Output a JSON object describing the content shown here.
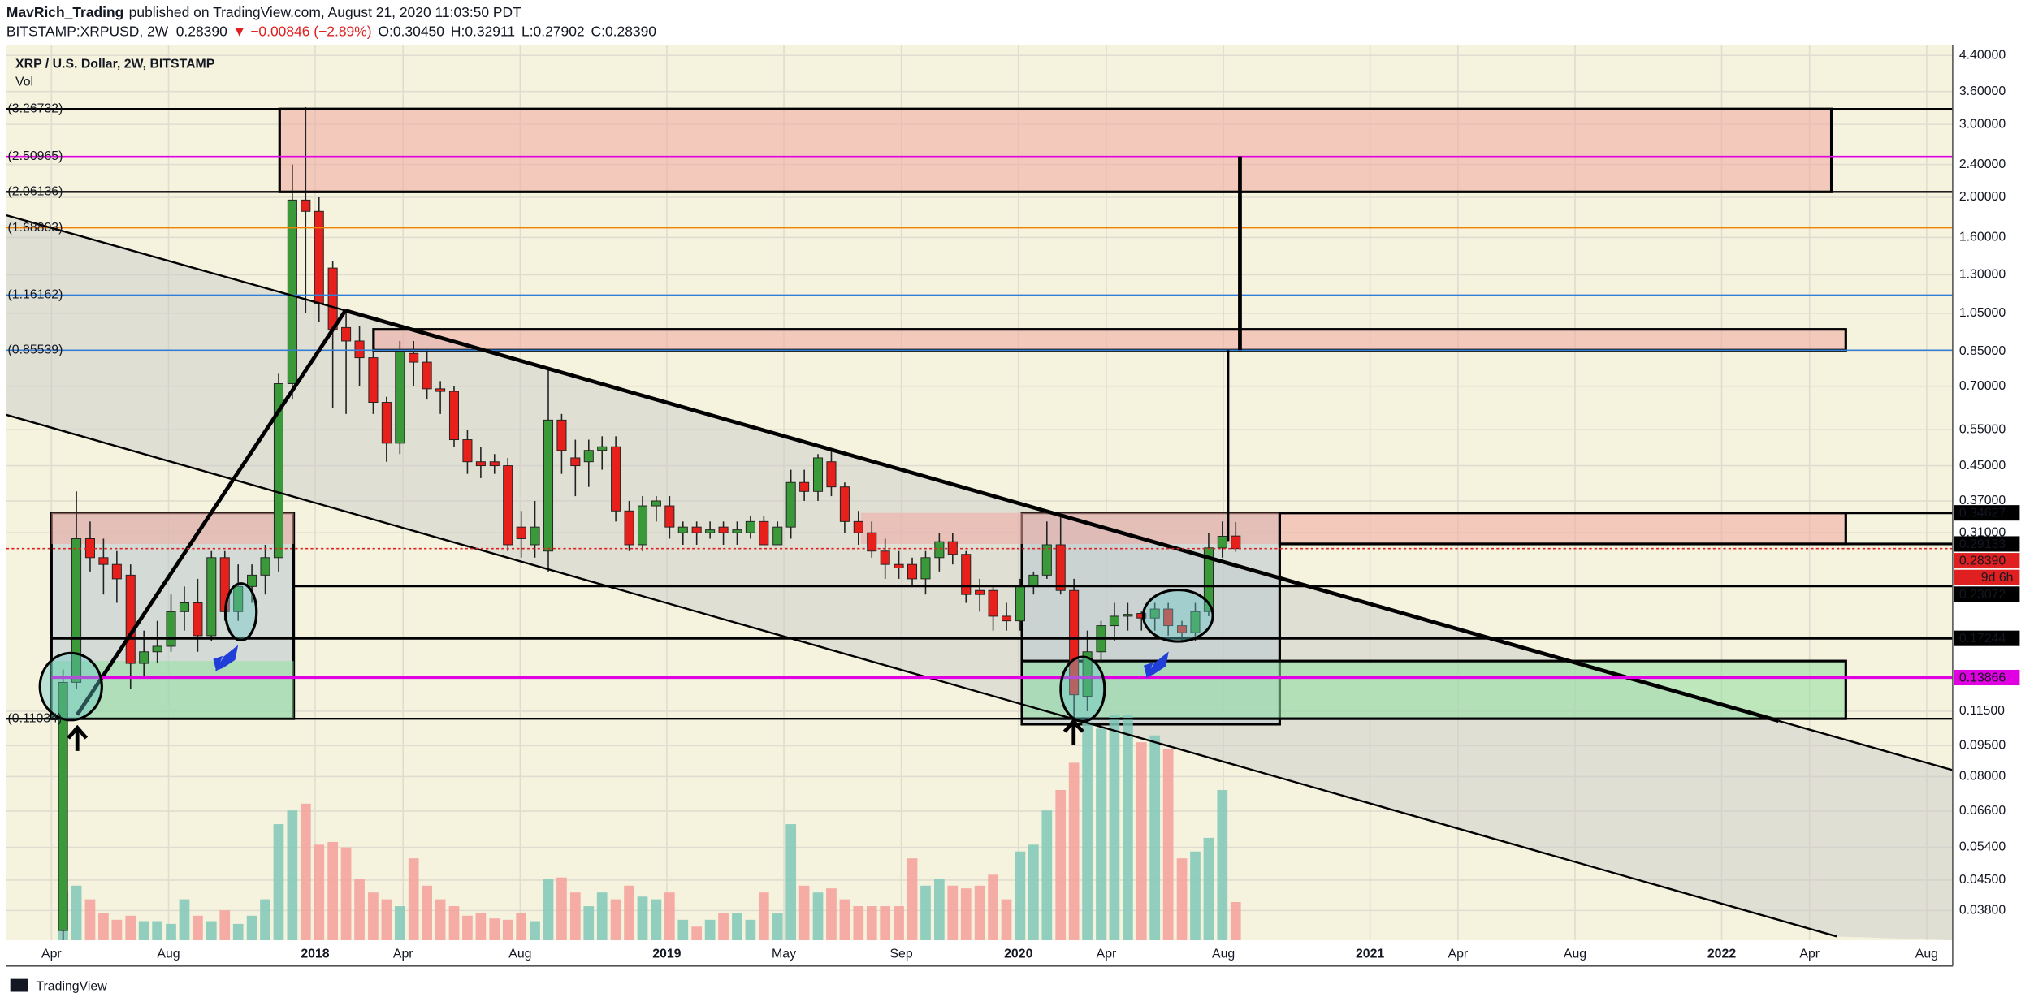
{
  "header": {
    "author": "MavRich_Trading",
    "published": "published on TradingView.com, August 21, 2020 11:03:50 PDT",
    "symbol": "BITSTAMP:XRPUSD, 2W",
    "last": "0.28390",
    "change": "▼ −0.00846 (−2.89%)",
    "open": "O:0.30450",
    "high": "H:0.32911",
    "low": "L:0.27902",
    "close": "C:0.28390"
  },
  "footer": "TradingView",
  "chart_data": {
    "type": "candlestick",
    "title": "XRP / U.S. Dollar, 2W, BITSTAMP",
    "volume_label": "Vol",
    "log_scale": true,
    "grid": true,
    "xlim": [
      2017.122,
      2022.657
    ],
    "ylim": [
      0.0322,
      4.66
    ],
    "xticks": [
      {
        "value": 2017.25,
        "label": "Apr"
      },
      {
        "value": 2017.583,
        "label": "Aug"
      },
      2018,
      {
        "value": 2018.25,
        "label": "Apr"
      },
      {
        "value": 2018.583,
        "label": "Aug"
      },
      2019,
      {
        "value": 2019.333,
        "label": "May"
      },
      {
        "value": 2019.667,
        "label": "Sep"
      },
      2020,
      {
        "value": 2020.25,
        "label": "Apr"
      },
      {
        "value": 2020.583,
        "label": "Aug"
      },
      2021,
      {
        "value": 2021.25,
        "label": "Apr"
      },
      {
        "value": 2021.583,
        "label": "Aug"
      },
      2022,
      {
        "value": 2022.25,
        "label": "Apr"
      },
      {
        "value": 2022.583,
        "label": "Aug"
      }
    ],
    "yticks": [
      {
        "value": 4.4,
        "label": "4.40000"
      },
      {
        "value": 3.6,
        "label": "3.60000"
      },
      {
        "value": 3,
        "label": "3.00000"
      },
      {
        "value": 2.4,
        "label": "2.40000"
      },
      {
        "value": 2,
        "label": "2.00000"
      },
      {
        "value": 1.6,
        "label": "1.60000"
      },
      {
        "value": 1.3,
        "label": "1.30000"
      },
      {
        "value": 1.05,
        "label": "1.05000"
      },
      {
        "value": 0.85,
        "label": "0.85000"
      },
      {
        "value": 0.7,
        "label": "0.70000"
      },
      {
        "value": 0.55,
        "label": "0.55000"
      },
      {
        "value": 0.45,
        "label": "0.45000"
      },
      {
        "value": 0.37,
        "label": "0.37000"
      },
      {
        "value": 0.31,
        "label": "0.31000"
      },
      {
        "value": 0.115,
        "label": "0.11500"
      },
      {
        "value": 0.095,
        "label": "0.09500"
      },
      {
        "value": 0.08,
        "label": "0.08000"
      },
      {
        "value": 0.066,
        "label": "0.06600"
      },
      {
        "value": 0.054,
        "label": "0.05400"
      },
      {
        "value": 0.045,
        "label": "0.04500"
      },
      {
        "value": 0.038,
        "label": "0.03800"
      }
    ],
    "up_color": "#3a9a3a",
    "down_color": "#e8201c",
    "volume_up_color": "#7fc8b8",
    "volume_down_color": "#f4a09a",
    "x": [
      2017.283,
      2017.321,
      2017.36,
      2017.398,
      2017.436,
      2017.475,
      2017.513,
      2017.551,
      2017.59,
      2017.628,
      2017.666,
      2017.705,
      2017.743,
      2017.781,
      2017.82,
      2017.858,
      2017.896,
      2017.935,
      2017.973,
      2018.011,
      2018.05,
      2018.088,
      2018.126,
      2018.165,
      2018.203,
      2018.241,
      2018.28,
      2018.318,
      2018.356,
      2018.395,
      2018.433,
      2018.471,
      2018.51,
      2018.548,
      2018.586,
      2018.625,
      2018.663,
      2018.701,
      2018.74,
      2018.778,
      2018.816,
      2018.855,
      2018.893,
      2018.931,
      2018.97,
      2019.008,
      2019.046,
      2019.085,
      2019.123,
      2019.161,
      2019.2,
      2019.238,
      2019.276,
      2019.315,
      2019.353,
      2019.391,
      2019.43,
      2019.468,
      2019.506,
      2019.545,
      2019.583,
      2019.621,
      2019.66,
      2019.698,
      2019.736,
      2019.775,
      2019.813,
      2019.851,
      2019.89,
      2019.928,
      2019.966,
      2020.005,
      2020.043,
      2020.081,
      2020.12,
      2020.158,
      2020.196,
      2020.235,
      2020.273,
      2020.311,
      2020.35,
      2020.388,
      2020.426,
      2020.465,
      2020.503,
      2020.541,
      2020.58,
      2020.618
    ],
    "open": [
      0.034,
      0.135,
      0.3,
      0.27,
      0.26,
      0.245,
      0.15,
      0.16,
      0.165,
      0.2,
      0.21,
      0.175,
      0.27,
      0.2,
      0.23,
      0.245,
      0.27,
      0.71,
      1.97,
      1.85,
      1.35,
      0.97,
      0.9,
      0.82,
      0.64,
      0.51,
      0.84,
      0.8,
      0.69,
      0.68,
      0.52,
      0.46,
      0.46,
      0.45,
      0.32,
      0.29,
      0.28,
      0.58,
      0.47,
      0.46,
      0.49,
      0.5,
      0.35,
      0.29,
      0.36,
      0.36,
      0.31,
      0.32,
      0.31,
      0.32,
      0.31,
      0.31,
      0.33,
      0.29,
      0.32,
      0.41,
      0.39,
      0.46,
      0.4,
      0.33,
      0.31,
      0.28,
      0.26,
      0.26,
      0.24,
      0.27,
      0.295,
      0.275,
      0.225,
      0.225,
      0.195,
      0.19,
      0.23,
      0.245,
      0.29,
      0.225,
      0.125,
      0.16,
      0.185,
      0.195,
      0.198,
      0.193,
      0.203,
      0.185,
      0.178,
      0.2,
      0.285,
      0.3045
    ],
    "high": [
      0.145,
      0.39,
      0.33,
      0.3,
      0.28,
      0.26,
      0.18,
      0.19,
      0.22,
      0.23,
      0.24,
      0.28,
      0.28,
      0.26,
      0.26,
      0.29,
      0.75,
      2.4,
      3.3,
      2,
      1.4,
      1.06,
      0.98,
      0.86,
      0.66,
      0.9,
      0.9,
      0.85,
      0.72,
      0.7,
      0.55,
      0.5,
      0.48,
      0.47,
      0.35,
      0.37,
      0.77,
      0.6,
      0.52,
      0.52,
      0.53,
      0.53,
      0.37,
      0.38,
      0.38,
      0.38,
      0.33,
      0.33,
      0.33,
      0.33,
      0.33,
      0.34,
      0.34,
      0.33,
      0.44,
      0.44,
      0.48,
      0.49,
      0.41,
      0.35,
      0.33,
      0.3,
      0.28,
      0.27,
      0.28,
      0.31,
      0.31,
      0.28,
      0.24,
      0.23,
      0.21,
      0.24,
      0.25,
      0.33,
      0.34,
      0.24,
      0.18,
      0.19,
      0.21,
      0.21,
      0.2,
      0.21,
      0.21,
      0.19,
      0.21,
      0.31,
      0.33,
      0.32911
    ],
    "low": [
      0.03,
      0.13,
      0.25,
      0.22,
      0.21,
      0.13,
      0.14,
      0.15,
      0.16,
      0.18,
      0.16,
      0.17,
      0.19,
      0.19,
      0.21,
      0.22,
      0.25,
      0.65,
      1.05,
      1,
      0.62,
      0.6,
      0.7,
      0.6,
      0.46,
      0.48,
      0.7,
      0.65,
      0.6,
      0.5,
      0.43,
      0.42,
      0.43,
      0.28,
      0.27,
      0.27,
      0.25,
      0.43,
      0.38,
      0.4,
      0.44,
      0.33,
      0.28,
      0.28,
      0.33,
      0.3,
      0.29,
      0.29,
      0.3,
      0.29,
      0.29,
      0.3,
      0.29,
      0.29,
      0.3,
      0.37,
      0.37,
      0.38,
      0.31,
      0.29,
      0.27,
      0.24,
      0.24,
      0.23,
      0.22,
      0.25,
      0.26,
      0.21,
      0.2,
      0.18,
      0.18,
      0.18,
      0.22,
      0.24,
      0.22,
      0.11,
      0.115,
      0.15,
      0.17,
      0.18,
      0.18,
      0.18,
      0.175,
      0.17,
      0.17,
      0.195,
      0.27,
      0.27902
    ],
    "close": [
      0.135,
      0.3,
      0.27,
      0.26,
      0.24,
      0.15,
      0.16,
      0.165,
      0.2,
      0.21,
      0.175,
      0.27,
      0.2,
      0.23,
      0.245,
      0.27,
      0.71,
      1.97,
      1.85,
      1.11,
      0.96,
      0.9,
      0.82,
      0.64,
      0.51,
      0.85,
      0.8,
      0.69,
      0.68,
      0.52,
      0.46,
      0.45,
      0.45,
      0.29,
      0.3,
      0.32,
      0.58,
      0.49,
      0.45,
      0.49,
      0.5,
      0.35,
      0.29,
      0.36,
      0.37,
      0.32,
      0.32,
      0.31,
      0.315,
      0.31,
      0.315,
      0.33,
      0.29,
      0.32,
      0.41,
      0.39,
      0.47,
      0.4,
      0.33,
      0.31,
      0.28,
      0.26,
      0.255,
      0.24,
      0.27,
      0.295,
      0.275,
      0.22,
      0.22,
      0.195,
      0.19,
      0.23,
      0.245,
      0.29,
      0.225,
      0.126,
      0.16,
      0.185,
      0.195,
      0.197,
      0.193,
      0.203,
      0.185,
      0.178,
      0.2,
      0.285,
      0.304,
      0.2839
    ],
    "volume": [
      35,
      40,
      30,
      20,
      15,
      18,
      14,
      14,
      12,
      30,
      18,
      14,
      22,
      12,
      18,
      30,
      85,
      95,
      100,
      70,
      72,
      68,
      45,
      35,
      30,
      25,
      60,
      40,
      30,
      25,
      18,
      20,
      16,
      15,
      20,
      14,
      45,
      46,
      35,
      25,
      35,
      30,
      40,
      32,
      30,
      35,
      15,
      10,
      15,
      20,
      20,
      15,
      35,
      20,
      85,
      40,
      35,
      38,
      30,
      25,
      25,
      25,
      25,
      60,
      40,
      45,
      40,
      38,
      40,
      48,
      30,
      65,
      70,
      95,
      110,
      130,
      160,
      155,
      165,
      165,
      145,
      150,
      140,
      60,
      65,
      75,
      110,
      28
    ],
    "levels": [
      {
        "value": 3.26732,
        "label": "(3.26732)",
        "color": "#000000"
      },
      {
        "value": 2.50965,
        "label": "(2.50965)",
        "color": "#e100e1"
      },
      {
        "value": 2.06136,
        "label": "(2.06136)",
        "color": "#000000"
      },
      {
        "value": 1.68803,
        "label": "(1.68803)",
        "color": "#f08000"
      },
      {
        "value": 1.16162,
        "label": "(1.16162)",
        "color": "#2f7fd8"
      },
      {
        "value": 0.85539,
        "label": "(0.85539)",
        "color": "#2f7fd8"
      },
      {
        "value": 0.11034,
        "label": "(0.11034)",
        "color": "#000000"
      }
    ],
    "price_labels": [
      {
        "value": 0.34627,
        "color": "#000000",
        "from": 2020.743
      },
      {
        "value": 0.29133,
        "color": "#000000",
        "from": 2020.743
      },
      {
        "value": 0.2839,
        "label": "0.28390",
        "color": "#e02020",
        "from": 2017.122,
        "dotted": true
      },
      {
        "value": 0.23072,
        "color": "#000000",
        "from": 2017.939
      },
      {
        "value": 0.17244,
        "color": "#000000",
        "from": 2017.25
      },
      {
        "value": 0.13866,
        "color": "#e100e1",
        "from": 2017.25
      }
    ],
    "countdown": "9d 6h",
    "zones": [
      {
        "x": [
          2017.899,
          2022.312
        ],
        "y": [
          2.06136,
          3.26732
        ],
        "color": "#f0a8a0",
        "outline": true
      },
      {
        "x": [
          2018.166,
          2022.353
        ],
        "y": [
          0.85539,
          0.96
        ],
        "color": "#f0a8a0",
        "outline": true
      },
      {
        "x": [
          2017.25,
          2017.939
        ],
        "y": [
          0.11034,
          0.34627
        ],
        "color": "#b8c8d0",
        "outline": true
      },
      {
        "x": [
          2020.01,
          2020.743
        ],
        "y": [
          0.107,
          0.34627
        ],
        "color": "#b8c8d0",
        "outline": true
      },
      {
        "x": [
          2017.25,
          2017.939
        ],
        "y": [
          0.29133,
          0.34627
        ],
        "color": "#f0a8a0",
        "outline": false
      },
      {
        "x": [
          2019.552,
          2020.743
        ],
        "y": [
          0.29133,
          0.34627
        ],
        "color": "#f0a8a0",
        "outline": false
      },
      {
        "x": [
          2020.743,
          2022.353
        ],
        "y": [
          0.29133,
          0.34627
        ],
        "color": "#f0a8a0",
        "outline": true
      },
      {
        "x": [
          2017.25,
          2017.939
        ],
        "y": [
          0.11034,
          0.152
        ],
        "color": "#90e0a0",
        "outline": false
      },
      {
        "x": [
          2020.01,
          2022.353
        ],
        "y": [
          0.11034,
          0.152
        ],
        "color": "#90e0a0",
        "outline": true
      }
    ],
    "channel": {
      "upper": [
        [
          2017.122,
          1.81
        ],
        [
          2022.657,
          0.0829
        ]
      ],
      "lower": [
        [
          2017.122,
          0.597
        ],
        [
          2022.327,
          0.0329
        ]
      ],
      "color": "#c8c8c8"
    },
    "trendlines": [
      {
        "points": [
          [
            2017.122,
            1.81
          ],
          [
            2018.086,
            1.066
          ]
        ],
        "style": "thin"
      },
      {
        "points": [
          [
            2018.086,
            1.066
          ],
          [
            2022.162,
            0.109
          ]
        ],
        "style": "thick"
      },
      {
        "points": [
          [
            2022.162,
            0.109
          ],
          [
            2022.657,
            0.0829
          ]
        ],
        "style": "thin"
      },
      {
        "points": [
          [
            2017.122,
            0.597
          ],
          [
            2022.327,
            0.0329
          ]
        ],
        "style": "thin"
      },
      {
        "points": [
          [
            2017.323,
            0.1127
          ],
          [
            2018.086,
            1.066
          ]
        ],
        "style": "thick"
      },
      {
        "points": [
          [
            2020.63,
            2.50965
          ],
          [
            2020.63,
            0.85539
          ]
        ],
        "style": "thick"
      },
      {
        "points": [
          [
            2020.597,
            0.85539
          ],
          [
            2020.597,
            0.296
          ]
        ],
        "style": "thin"
      }
    ]
  }
}
